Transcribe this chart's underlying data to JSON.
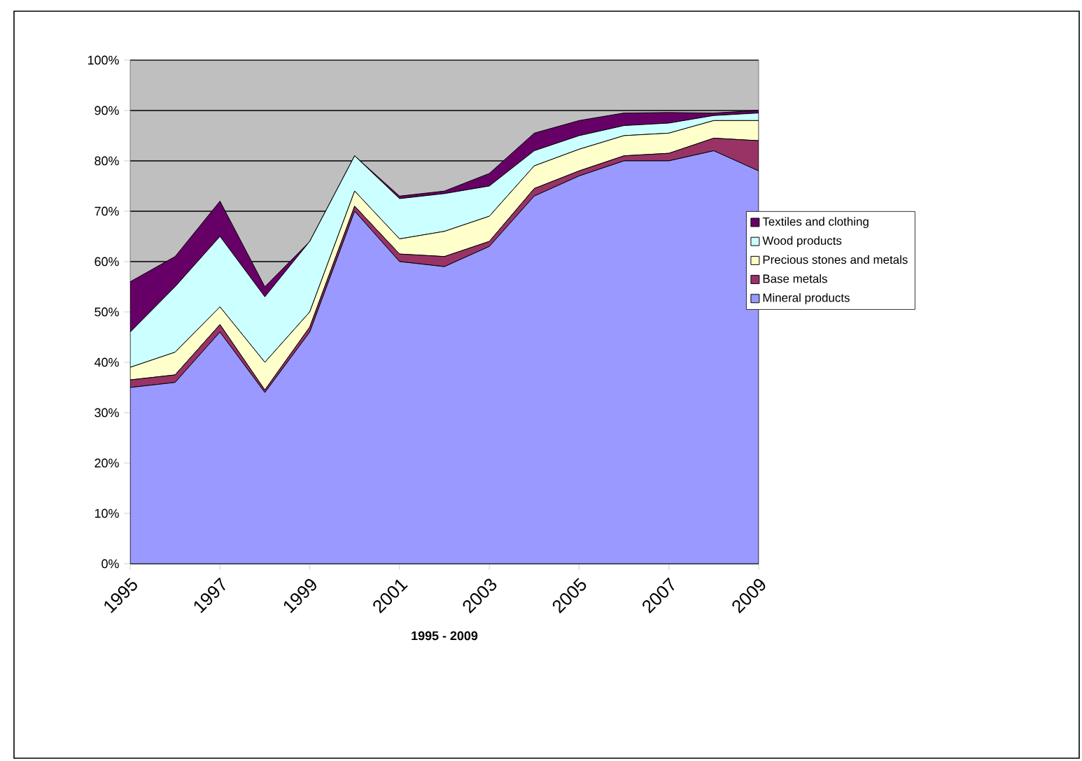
{
  "chart_data": {
    "type": "area",
    "stacked": true,
    "xlabel": "1995 - 2009",
    "x": [
      1995,
      1996,
      1997,
      1998,
      1999,
      2000,
      2001,
      2002,
      2003,
      2004,
      2005,
      2006,
      2007,
      2008,
      2009
    ],
    "xlim": [
      1995,
      2009
    ],
    "xticks": [
      1995,
      1997,
      1999,
      2001,
      2003,
      2005,
      2007,
      2009
    ],
    "ylim": [
      0,
      100
    ],
    "yticks": [
      {
        "value": 0,
        "label": "0%"
      },
      {
        "value": 10,
        "label": "10%"
      },
      {
        "value": 20,
        "label": "20%"
      },
      {
        "value": 30,
        "label": "30%"
      },
      {
        "value": 40,
        "label": "40%"
      },
      {
        "value": 50,
        "label": "50%"
      },
      {
        "value": 60,
        "label": "60%"
      },
      {
        "value": 70,
        "label": "70%"
      },
      {
        "value": 80,
        "label": "80%"
      },
      {
        "value": 90,
        "label": "90%"
      },
      {
        "value": 100,
        "label": "100%"
      }
    ],
    "grid": "y",
    "legend": "right",
    "series": [
      {
        "name": "Mineral products",
        "color": "#9999ff",
        "values": [
          35,
          36,
          46,
          34,
          46,
          70,
          60,
          59,
          63,
          73,
          77,
          80,
          80,
          82,
          78
        ]
      },
      {
        "name": "Base metals",
        "color": "#993366",
        "values": [
          1.5,
          1.5,
          1.5,
          0.5,
          1,
          1,
          1.5,
          2,
          1,
          1.5,
          1,
          1,
          1.5,
          2.5,
          6
        ]
      },
      {
        "name": "Precious stones and metals",
        "color": "#ffffcc",
        "values": [
          2.5,
          4.5,
          3.5,
          5.5,
          3,
          3,
          3,
          5,
          5,
          4.5,
          4.3,
          4,
          4,
          3.5,
          4
        ]
      },
      {
        "name": "Wood products",
        "color": "#ccffff",
        "values": [
          7,
          13,
          14,
          13,
          14,
          7,
          8,
          7.5,
          6,
          3,
          2.7,
          2,
          2,
          1,
          1.5
        ]
      },
      {
        "name": "Textiles and clothing",
        "color": "#660066",
        "values": [
          10,
          6,
          7,
          2,
          0,
          0,
          0.5,
          0.5,
          2.5,
          3.5,
          3,
          2.5,
          2.1,
          0.5,
          0.5
        ]
      }
    ]
  }
}
